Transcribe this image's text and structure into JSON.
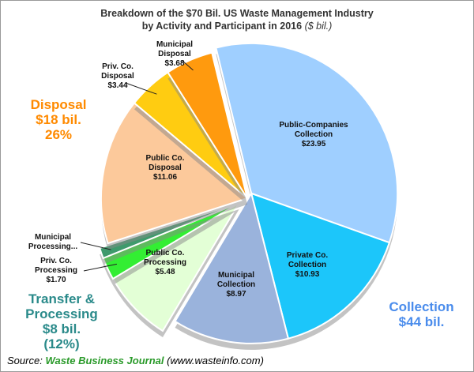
{
  "chart_data": {
    "type": "pie",
    "title": [
      "Breakdown of the $70 Bil. US Waste Management Industry",
      "by Activity and Participant in 2016"
    ],
    "title_unit": "($ bil.)",
    "categories": [
      "Public-Companies Collection",
      "Private Co. Collection",
      "Municipal Collection",
      "Public Co. Processing",
      "Priv. Co. Processing",
      "Municipal Processing...",
      "Public Co. Disposal",
      "Priv. Co. Disposal",
      "Municipal Disposal"
    ],
    "values": [
      23.95,
      10.93,
      8.97,
      5.48,
      1.7,
      0.8,
      11.06,
      3.44,
      3.68
    ],
    "value_labels": [
      "$23.95",
      "$10.93",
      "$8.97",
      "$5.48",
      "$1.70",
      null,
      "$11.06",
      "$3.44",
      "$3.68"
    ],
    "colors": [
      "#9fcfff",
      "#1cc6fa",
      "#9ab3dc",
      "#e3ffd6",
      "#33ee33",
      "#3f9a6c",
      "#fcc99b",
      "#ffcc11",
      "#ff9a0e"
    ],
    "annotations": [
      {
        "lines": [
          "Disposal",
          "$18 bil.",
          "26%"
        ],
        "color": "#ff8a00"
      },
      {
        "lines": [
          "Transfer &",
          "Processing",
          "$8 bil.",
          "(12%)"
        ],
        "color": "#2a8a8a"
      },
      {
        "lines": [
          "Collection",
          "$44 bil."
        ],
        "color": "#4a8cec"
      }
    ],
    "source": {
      "label": "Source:",
      "name": "Waste Business Journal",
      "url": "(www.wasteinfo.com)"
    }
  }
}
